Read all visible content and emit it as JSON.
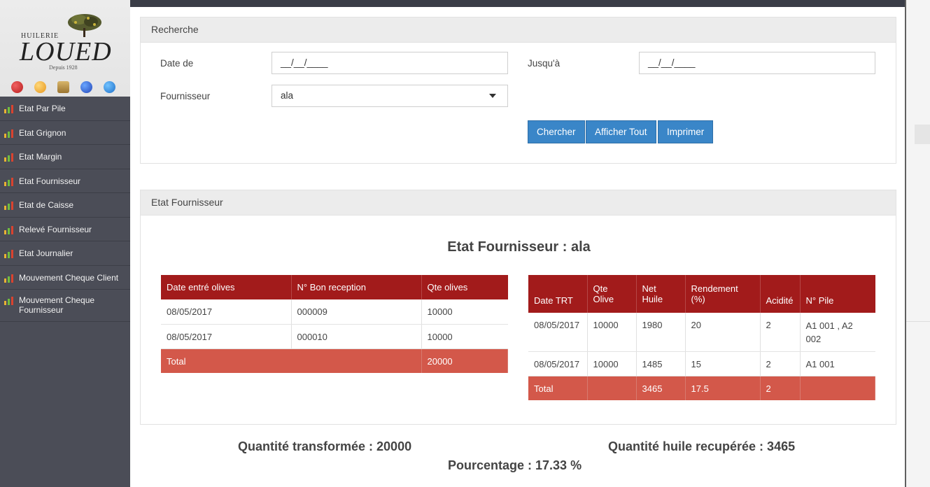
{
  "brand": {
    "small": "HUILERIE",
    "main": "LOUED",
    "since": "Depuis 1928"
  },
  "colors": {
    "sidebar": "#4b4d57",
    "table_header": "#a21b1b",
    "total_row": "#d3584a",
    "primary_button": "#3a86c8"
  },
  "sidebar": {
    "app_icons": [
      "molecule-icon",
      "orange-icon",
      "crate-icon",
      "badge-icon",
      "star-icon"
    ],
    "items": [
      {
        "label": "Etat Par Pile",
        "icon": "chart-icon"
      },
      {
        "label": "Etat Grignon",
        "icon": "chart-icon"
      },
      {
        "label": "Etat Margin",
        "icon": "chart-icon"
      },
      {
        "label": "Etat Fournisseur",
        "icon": "chart-icon"
      },
      {
        "label": "Etat de Caisse",
        "icon": "chart-icon"
      },
      {
        "label": "Relevé Fournisseur",
        "icon": "chart-icon"
      },
      {
        "label": "Etat Journalier",
        "icon": "chart-icon"
      },
      {
        "label": "Mouvement Cheque Client",
        "icon": "chart-icon"
      },
      {
        "label": "Mouvement Cheque Fournisseur",
        "icon": "chart-icon"
      }
    ]
  },
  "search": {
    "title": "Recherche",
    "date_from_label": "Date de",
    "date_from_value": "__/__/____",
    "date_to_label": "Jusqu'à",
    "date_to_value": "__/__/____",
    "supplier_label": "Fournisseur",
    "supplier_value": "ala",
    "buttons": {
      "search": "Chercher",
      "show_all": "Afficher Tout",
      "print": "Imprimer"
    }
  },
  "report": {
    "panel_title": "Etat Fournisseur",
    "heading": "Etat Fournisseur : ala",
    "reception_table": {
      "headers": [
        "Date entré olives",
        "N° Bon reception",
        "Qte olives"
      ],
      "rows": [
        [
          "08/05/2017",
          "000009",
          "10000"
        ],
        [
          "08/05/2017",
          "000010",
          "10000"
        ]
      ],
      "total": {
        "label": "Total",
        "qte": "20000"
      }
    },
    "treatment_table": {
      "headers": [
        "Date TRT",
        "Qte Olive",
        "Net Huile",
        "Rendement (%)",
        "Acidité",
        "N° Pile"
      ],
      "rows": [
        [
          "08/05/2017",
          "10000",
          "1980",
          "20",
          "2",
          "A1 001 , A2 002"
        ],
        [
          "08/05/2017",
          "10000",
          "1485",
          "15",
          "2",
          "A1 001"
        ]
      ],
      "total": [
        "Total",
        "",
        "3465",
        "17.5",
        "2",
        ""
      ]
    }
  },
  "summary": {
    "transformed": "Quantité transformée : 20000",
    "oil_recovered": "Quantité huile recupérée : 3465",
    "percentage": "Pourcentage : 17.33 %"
  }
}
